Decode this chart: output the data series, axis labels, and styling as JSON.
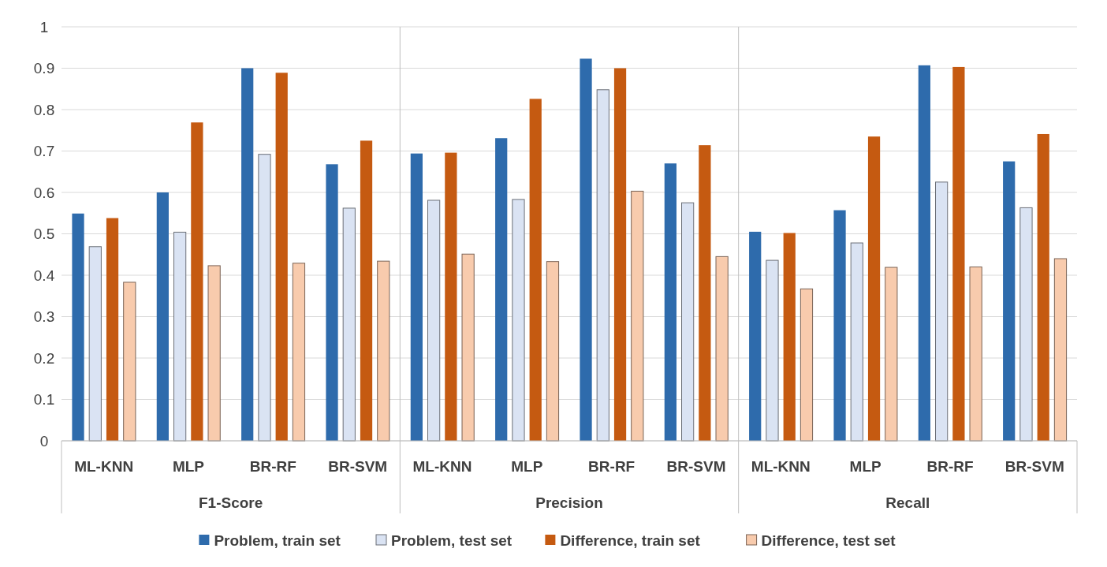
{
  "chart_data": {
    "type": "bar",
    "categories": [
      "ML-KNN",
      "MLP",
      "BR-RF",
      "BR-SVM",
      "ML-KNN",
      "MLP",
      "BR-RF",
      "BR-SVM",
      "ML-KNN",
      "MLP",
      "BR-RF",
      "BR-SVM"
    ],
    "series": [
      {
        "name": "Problem, train set",
        "color": "#2e6bac",
        "values": [
          0.549,
          0.6,
          0.9,
          0.668,
          0.694,
          0.731,
          0.923,
          0.67,
          0.505,
          0.557,
          0.907,
          0.675
        ]
      },
      {
        "name": "Problem, test set",
        "color": "#dae3f3",
        "values": [
          0.469,
          0.504,
          0.692,
          0.562,
          0.581,
          0.583,
          0.848,
          0.575,
          0.436,
          0.478,
          0.625,
          0.563
        ]
      },
      {
        "name": "Difference, train set",
        "color": "#c55a11",
        "values": [
          0.538,
          0.769,
          0.889,
          0.725,
          0.696,
          0.826,
          0.9,
          0.714,
          0.502,
          0.735,
          0.903,
          0.741
        ]
      },
      {
        "name": "Difference, test set",
        "color": "#f8cbad",
        "values": [
          0.383,
          0.423,
          0.429,
          0.434,
          0.451,
          0.433,
          0.603,
          0.445,
          0.367,
          0.419,
          0.42,
          0.44
        ]
      }
    ],
    "annotations": [
      "F1-Score",
      "Precision",
      "Recall"
    ],
    "ylim": [
      0,
      1
    ],
    "yticks": [
      0,
      0.1,
      0.2,
      0.3,
      0.4,
      0.5,
      0.6,
      0.7,
      0.8,
      0.9,
      1
    ],
    "grid": "y",
    "legend": "bottom"
  }
}
